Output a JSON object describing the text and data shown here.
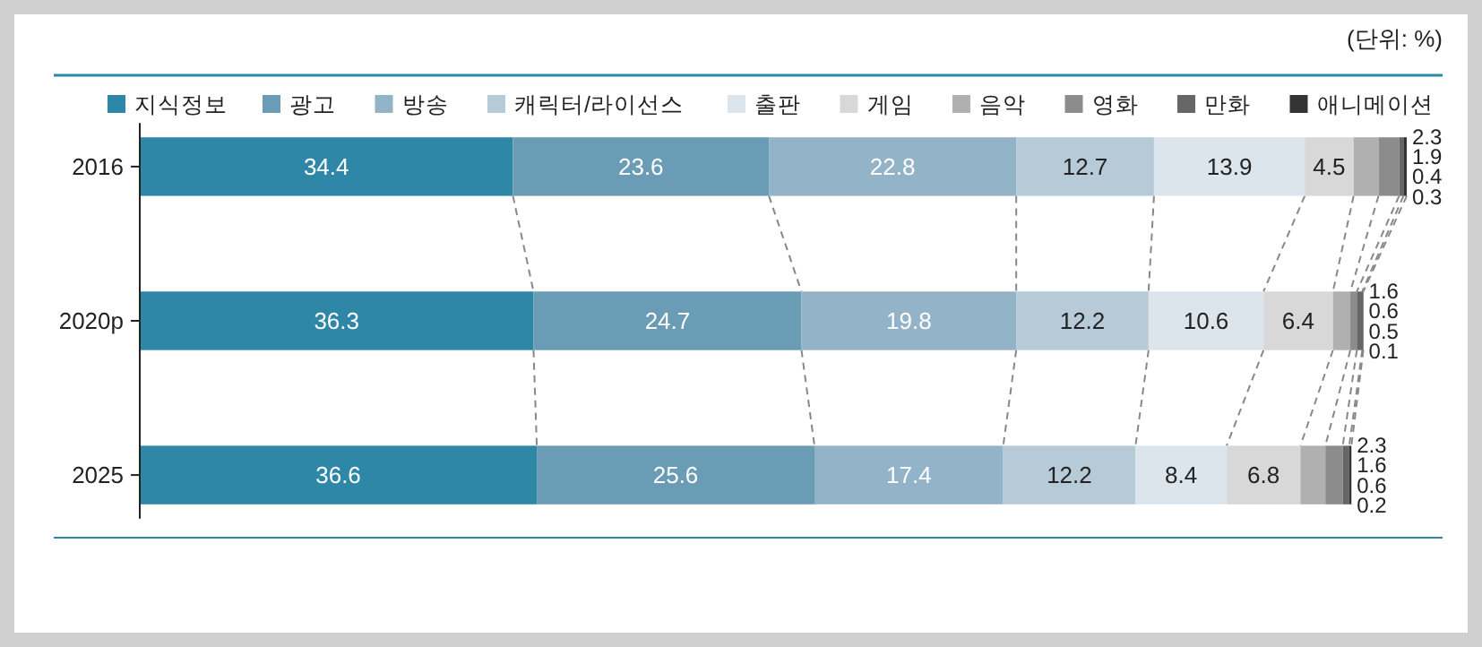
{
  "chart_data": {
    "type": "bar",
    "orientation": "horizontal",
    "stacked": true,
    "data_labels": true,
    "legend": "top",
    "grid": false,
    "annotations": [
      "(단위: %)"
    ],
    "categories": [
      "2016",
      "2020p",
      "2025"
    ],
    "series": [
      {
        "name": "지식정보",
        "color": "#2e87a6",
        "values": [
          34.4,
          36.3,
          36.6
        ]
      },
      {
        "name": "광고",
        "color": "#6a9db5",
        "values": [
          23.6,
          24.7,
          25.6
        ]
      },
      {
        "name": "방송",
        "color": "#93b4c8",
        "values": [
          22.8,
          19.8,
          17.4
        ]
      },
      {
        "name": "캐릭터/라이선스",
        "color": "#b6cad8",
        "values": [
          12.7,
          12.2,
          12.2
        ]
      },
      {
        "name": "출판",
        "color": "#dce5ec",
        "values": [
          13.9,
          10.6,
          8.4
        ]
      },
      {
        "name": "게임",
        "color": "#d8d8d8",
        "values": [
          4.5,
          6.4,
          6.8
        ]
      },
      {
        "name": "음악",
        "color": "#b0b0b0",
        "values": [
          2.3,
          1.6,
          2.3
        ]
      },
      {
        "name": "영화",
        "color": "#8c8c8c",
        "values": [
          1.9,
          0.6,
          1.6
        ]
      },
      {
        "name": "만화",
        "color": "#666666",
        "values": [
          0.4,
          0.5,
          0.6
        ]
      },
      {
        "name": "애니메이션",
        "color": "#333333",
        "values": [
          0.3,
          0.1,
          0.2
        ]
      }
    ]
  }
}
